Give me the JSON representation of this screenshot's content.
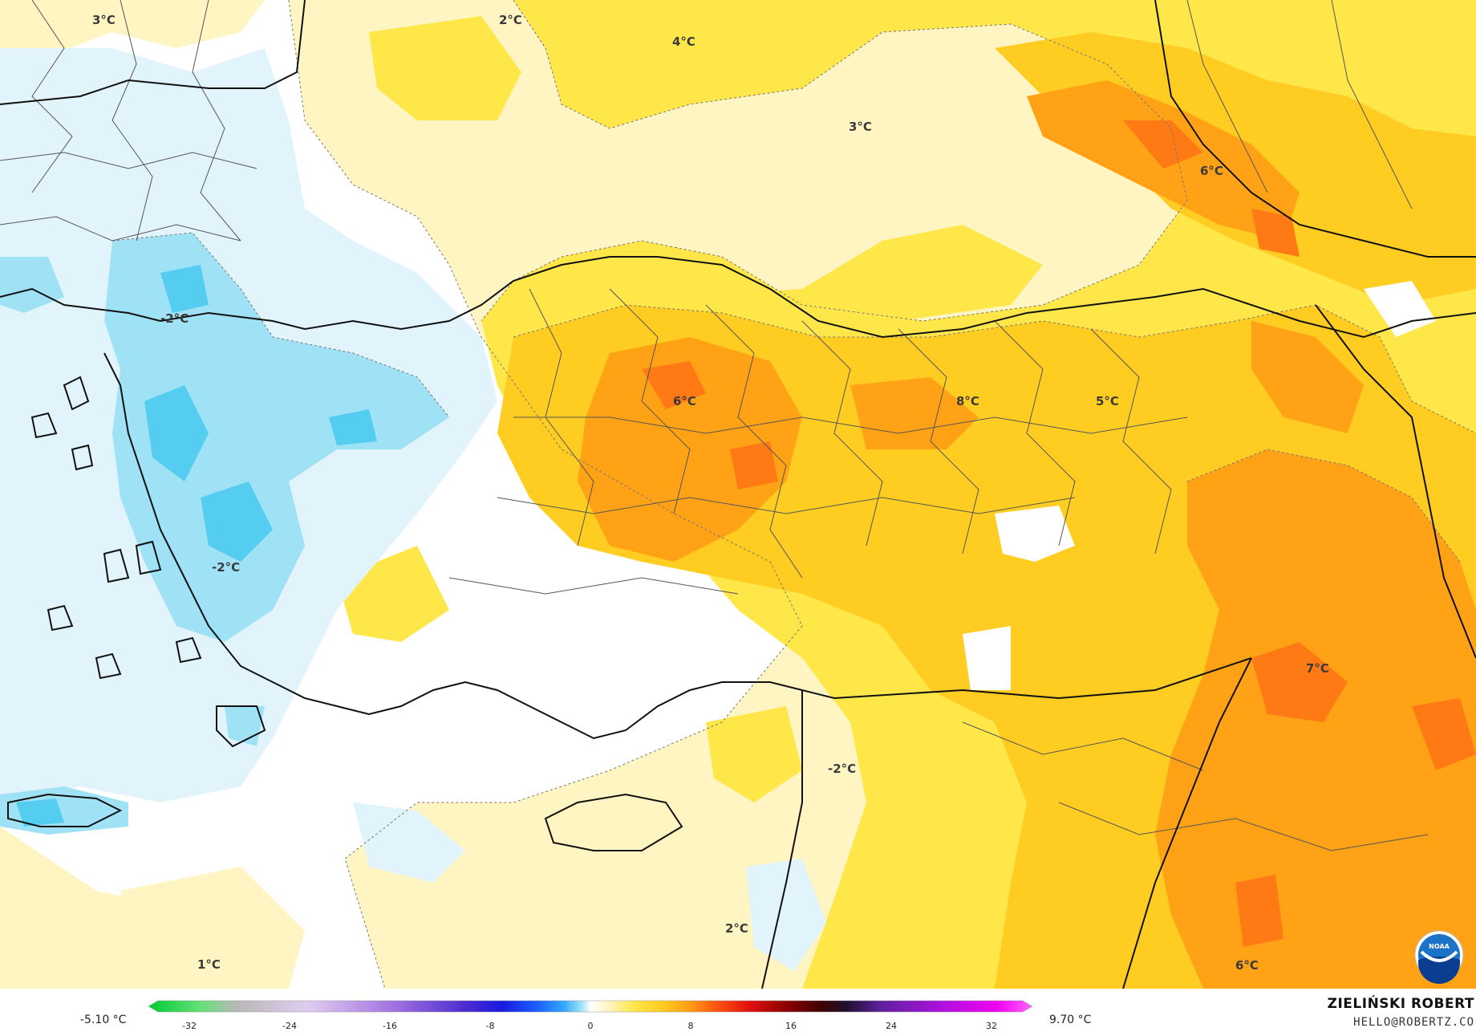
{
  "map": {
    "labels": [
      "3°C",
      "2°C",
      "4°C",
      "3°C",
      "6°C",
      "-2°C",
      "6°C",
      "8°C",
      "5°C",
      "-2°C",
      "7°C",
      "-2°C",
      "2°C",
      "1°C",
      "6°C"
    ],
    "colors": {
      "sea": "#ffffff",
      "pale_yellow": "#fff5c2",
      "yellow": "#ffe74a",
      "orange_yellow": "#ffcc22",
      "orange": "#ffa216",
      "dark_orange": "#ff7a14",
      "light_blue": "#e2f4fb",
      "blue": "#9fe2f6",
      "deep_blue": "#55cdf0"
    },
    "logo_text": "NOAA"
  },
  "colorbar": {
    "min_label": "-5.10 °C",
    "max_label": "9.70 °C",
    "ticks": [
      "-32",
      "-24",
      "-16",
      "-8",
      "0",
      "8",
      "16",
      "24",
      "32"
    ]
  },
  "credit": {
    "name": "ZIELIŃSKI ROBERT",
    "email": "HELLO@ROBERTZ.CO"
  }
}
